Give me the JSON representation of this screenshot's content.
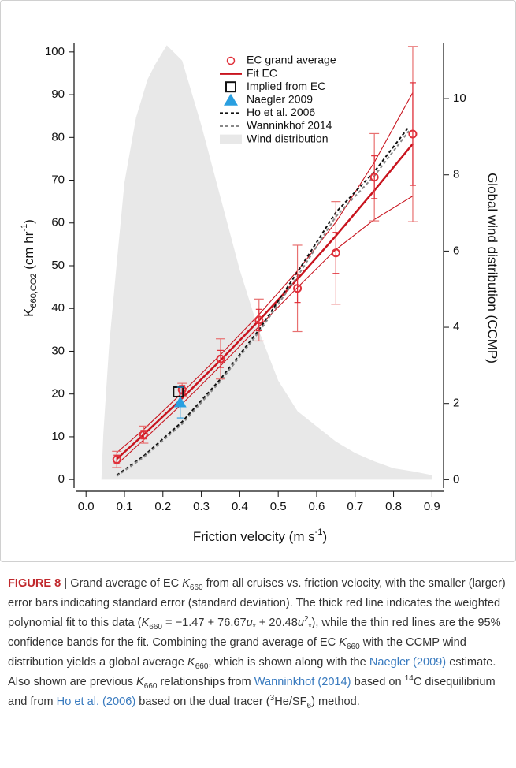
{
  "chart_data": {
    "type": "scatter",
    "x_label": [
      "Friction velocity (m s",
      "-1",
      ")"
    ],
    "y_label": [
      "K",
      "660,CO2",
      " (cm hr",
      "-1",
      ")"
    ],
    "y2_label": "Global wind distribution (CCMP)",
    "xlim": [
      -0.025,
      0.93
    ],
    "ylim": [
      -2,
      102
    ],
    "y2lim": [
      -0.22,
      11.45
    ],
    "xticks": [
      {
        "value": 0,
        "label": "0.0"
      },
      0.1,
      0.2,
      0.3,
      0.4,
      0.5,
      0.6,
      0.7,
      0.8,
      0.9
    ],
    "yticks": [
      0,
      10,
      20,
      30,
      40,
      50,
      60,
      70,
      80,
      90,
      100
    ],
    "y2ticks": [
      0,
      2,
      4,
      6,
      8,
      10
    ],
    "legend": "top",
    "bands": {
      "color": "#c8141e",
      "x": [
        0.08,
        0.15,
        0.25,
        0.35,
        0.45,
        0.55,
        0.65,
        0.75,
        0.85
      ],
      "upper": [
        6.3,
        11.7,
        20.3,
        29.2,
        38.6,
        48.8,
        60.2,
        74.2,
        90.5
      ],
      "lower": [
        3.5,
        9.3,
        17.7,
        26.6,
        35.8,
        44.9,
        53.8,
        60.8,
        66.3
      ]
    },
    "series": [
      {
        "name": "EC grand average",
        "style": "marker",
        "marker": "circle",
        "color": "#e0303a",
        "error_color": "#e87070",
        "x": [
          0.08,
          0.15,
          0.25,
          0.35,
          0.45,
          0.55,
          0.65,
          0.75,
          0.85
        ],
        "values": [
          4.7,
          10.5,
          21,
          28.2,
          37.3,
          44.7,
          53,
          70.7,
          80.8
        ],
        "se": [
          1,
          1,
          1,
          2,
          2.5,
          3.3,
          4.8,
          5,
          12
        ],
        "sd": [
          1.9,
          2,
          1.5,
          4.7,
          4.9,
          10.1,
          12,
          10.2,
          20.5
        ]
      },
      {
        "name": "Fit EC",
        "style": "line",
        "width": 2.5,
        "color": "#c8141e",
        "x": [
          0.08,
          0.15,
          0.25,
          0.35,
          0.45,
          0.55,
          0.65,
          0.75,
          0.85
        ],
        "values": [
          4.8,
          10.5,
          19.0,
          27.9,
          37.2,
          46.9,
          57.0,
          67.6,
          78.5
        ]
      },
      {
        "name": "Implied from EC",
        "style": "marker",
        "marker": "square",
        "color": "#111111",
        "x": [
          0.24
        ],
        "values": [
          20.5
        ]
      },
      {
        "name": "Naegler 2009",
        "style": "marker",
        "marker": "triangle",
        "color": "#2a9fe0",
        "x": [
          0.245
        ],
        "values": [
          18
        ],
        "errors": [
          3.6
        ]
      },
      {
        "name": "Ho et al. 2006",
        "style": "line",
        "dash": true,
        "width": 2,
        "color": "#111111",
        "x": [
          0.08,
          0.15,
          0.25,
          0.35,
          0.45,
          0.55,
          0.65,
          0.75,
          0.84
        ],
        "values": [
          1.0,
          5.5,
          13.5,
          23.5,
          35,
          48.5,
          62.5,
          72,
          82.5
        ]
      },
      {
        "name": "Wanninkhof 2014",
        "style": "line",
        "dash": true,
        "width": 2,
        "color": "#888888",
        "x": [
          0.08,
          0.15,
          0.25,
          0.35,
          0.45,
          0.55,
          0.65,
          0.75,
          0.84
        ],
        "values": [
          0.8,
          5.2,
          13,
          23,
          34.5,
          47.5,
          61.5,
          71,
          81.5
        ]
      },
      {
        "name": "Wind distribution",
        "style": "area",
        "axis": "y2",
        "color": "#e8e8e8",
        "x": [
          0.04,
          0.045,
          0.06,
          0.08,
          0.1,
          0.13,
          0.16,
          0.18,
          0.21,
          0.25,
          0.3,
          0.35,
          0.4,
          0.45,
          0.5,
          0.55,
          0.6,
          0.65,
          0.7,
          0.75,
          0.8,
          0.85,
          0.9
        ],
        "values": [
          0,
          1.2,
          3.5,
          5.7,
          7.8,
          9.5,
          10.5,
          10.9,
          11.4,
          11.0,
          9.3,
          7.4,
          5.5,
          3.9,
          2.6,
          1.8,
          1.4,
          1.0,
          0.7,
          0.48,
          0.3,
          0.22,
          0.12
        ]
      }
    ]
  },
  "caption": [
    {
      "t": "FIGURE 8",
      "s": "b"
    },
    {
      "t": " | Grand average of EC ",
      "s": ""
    },
    {
      "t": "K",
      "s": "i"
    },
    {
      "t": "660",
      "s": "sub"
    },
    {
      "t": " from all cruises vs. friction velocity, with the smaller (larger) error bars indicating standard error (standard deviation). The thick red line indicates the weighted polynomial fit to this data (",
      "s": ""
    },
    {
      "t": "K",
      "s": "i"
    },
    {
      "t": "660",
      "s": "sub"
    },
    {
      "t": " = −1.47 + 76.67",
      "s": ""
    },
    {
      "t": "u",
      "s": "i"
    },
    {
      "t": "*",
      "s": "sub"
    },
    {
      "t": " + 20.48",
      "s": ""
    },
    {
      "t": "u",
      "s": "i"
    },
    {
      "t": "2",
      "s": "sup"
    },
    {
      "t": "*",
      "s": "sub"
    },
    {
      "t": "), while the thin red lines are the 95% confidence bands for the fit. Combining the grand average of EC ",
      "s": ""
    },
    {
      "t": "K",
      "s": "i"
    },
    {
      "t": "660",
      "s": "sub"
    },
    {
      "t": " with the CCMP wind distribution yields a global average ",
      "s": ""
    },
    {
      "t": "K",
      "s": "i"
    },
    {
      "t": "660",
      "s": "sub"
    },
    {
      "t": ", which is shown along with the ",
      "s": ""
    },
    {
      "t": "Naegler (2009)",
      "s": "a"
    },
    {
      "t": " estimate. Also shown are previous ",
      "s": ""
    },
    {
      "t": "K",
      "s": "i"
    },
    {
      "t": "660",
      "s": "sub"
    },
    {
      "t": " relationships from ",
      "s": ""
    },
    {
      "t": "Wanninkhof (2014)",
      "s": "a"
    },
    {
      "t": " based on ",
      "s": ""
    },
    {
      "t": "14",
      "s": "sup"
    },
    {
      "t": "C disequilibrium and from ",
      "s": ""
    },
    {
      "t": "Ho et al. (2006)",
      "s": "a"
    },
    {
      "t": " based on the dual tracer (",
      "s": ""
    },
    {
      "t": "3",
      "s": "sup"
    },
    {
      "t": "He/SF",
      "s": ""
    },
    {
      "t": "6",
      "s": "sub"
    },
    {
      "t": ") method.",
      "s": ""
    }
  ]
}
